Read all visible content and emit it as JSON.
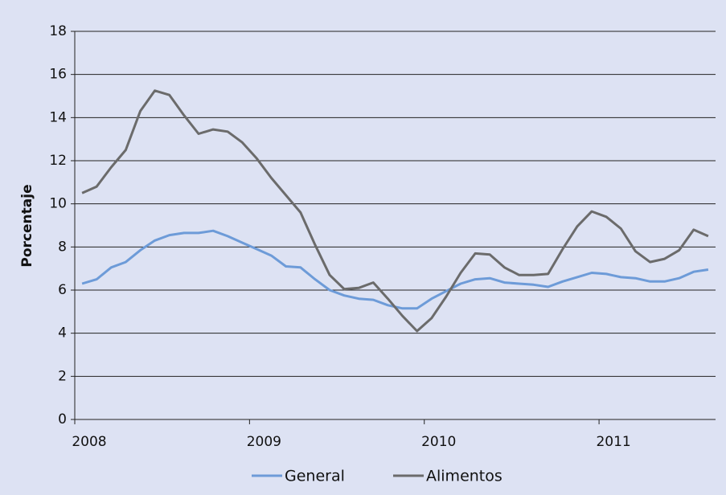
{
  "chart_data": {
    "type": "line",
    "categories": [
      "2008",
      null,
      null,
      null,
      null,
      null,
      null,
      null,
      null,
      null,
      null,
      null,
      "2009",
      null,
      null,
      null,
      null,
      null,
      null,
      null,
      null,
      null,
      null,
      null,
      "2010",
      null,
      null,
      null,
      null,
      null,
      null,
      null,
      null,
      null,
      null,
      null,
      "2011",
      null,
      null,
      null,
      null,
      null,
      null,
      null
    ],
    "series": [
      {
        "name": "General",
        "color": "#6d9bd8",
        "values": [
          6.3,
          6.5,
          7.05,
          7.3,
          7.85,
          8.3,
          8.55,
          8.65,
          8.65,
          8.75,
          8.5,
          8.2,
          7.9,
          7.6,
          7.1,
          7.05,
          6.5,
          6.0,
          5.75,
          5.6,
          5.55,
          5.3,
          5.15,
          5.15,
          5.6,
          5.95,
          6.3,
          6.5,
          6.55,
          6.35,
          6.3,
          6.25,
          6.15,
          6.4,
          6.6,
          6.8,
          6.75,
          6.6,
          6.55,
          6.4,
          6.4,
          6.55,
          6.85,
          6.95
        ]
      },
      {
        "name": "Alimentos",
        "color": "#6b6b6b",
        "values": [
          10.5,
          10.8,
          11.7,
          12.5,
          14.3,
          15.25,
          15.05,
          14.1,
          13.25,
          13.45,
          13.35,
          12.85,
          12.1,
          11.2,
          10.4,
          9.6,
          8.1,
          6.7,
          6.05,
          6.1,
          6.35,
          5.6,
          4.8,
          4.1,
          4.7,
          5.7,
          6.8,
          7.7,
          7.65,
          7.05,
          6.7,
          6.7,
          6.75,
          7.9,
          8.95,
          9.65,
          9.4,
          8.85,
          7.8,
          7.3,
          7.45,
          7.85,
          8.8,
          8.5
        ]
      }
    ],
    "y_label": "Porcentaje",
    "ylim": [
      0,
      18
    ],
    "yticks": [
      0,
      2,
      4,
      6,
      8,
      10,
      12,
      14,
      16,
      18
    ],
    "grid": true,
    "legend": "bottom"
  }
}
